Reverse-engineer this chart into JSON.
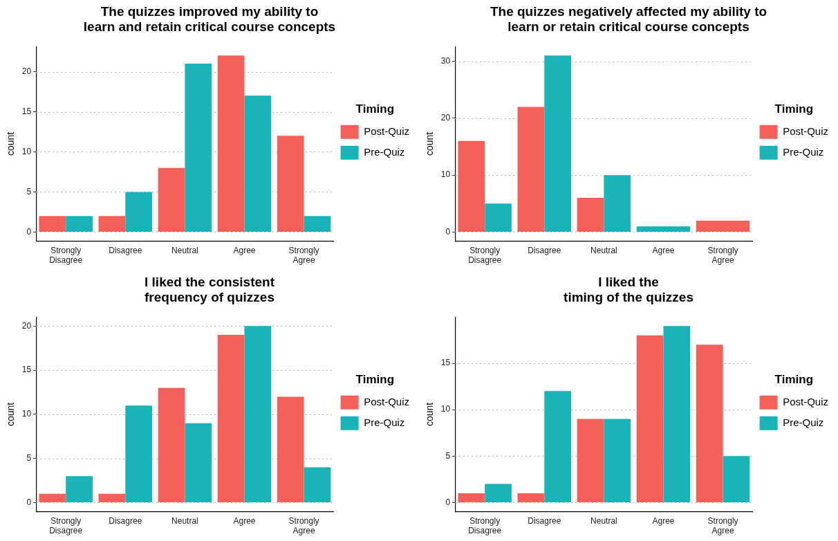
{
  "chart_data": [
    {
      "type": "bar",
      "title": "The quizzes improved my ability to\nlearn and retain critical course concepts",
      "ylabel": "count",
      "legend_title": "Timing",
      "categories": [
        "Strongly Disagree",
        "Disagree",
        "Neutral",
        "Agree",
        "Strongly Agree"
      ],
      "series": [
        {
          "name": "Post-Quiz",
          "color": "#f5605b",
          "values": [
            2,
            2,
            8,
            22,
            12
          ]
        },
        {
          "name": "Pre-Quiz",
          "color": "#1ab3b8",
          "values": [
            2,
            5,
            21,
            17,
            2
          ]
        }
      ],
      "ylim": [
        -1.1,
        23.1
      ],
      "yticks": [
        0,
        5,
        10,
        15,
        20
      ],
      "grid": "y",
      "legend": "right"
    },
    {
      "type": "bar",
      "title": "The quizzes negatively affected my ability to\nlearn or retain critical course concepts",
      "ylabel": "count",
      "legend_title": "Timing",
      "categories": [
        "Strongly Disagree",
        "Disagree",
        "Neutral",
        "Agree",
        "Strongly Agree"
      ],
      "series": [
        {
          "name": "Post-Quiz",
          "color": "#f5605b",
          "values": [
            16,
            22,
            6,
            null,
            2
          ]
        },
        {
          "name": "Pre-Quiz",
          "color": "#1ab3b8",
          "values": [
            5,
            31,
            10,
            1,
            null
          ]
        }
      ],
      "ylim": [
        -1.55,
        32.55
      ],
      "yticks": [
        0,
        10,
        20,
        30
      ],
      "grid": "y",
      "legend": "right"
    },
    {
      "type": "bar",
      "title": "I liked the consistent\nfrequency of quizzes",
      "ylabel": "count",
      "legend_title": "Timing",
      "categories": [
        "Strongly Disagree",
        "Disagree",
        "Neutral",
        "Agree",
        "Strongly Agree"
      ],
      "series": [
        {
          "name": "Post-Quiz",
          "color": "#f5605b",
          "values": [
            1,
            1,
            13,
            19,
            12
          ]
        },
        {
          "name": "Pre-Quiz",
          "color": "#1ab3b8",
          "values": [
            3,
            11,
            9,
            20,
            4
          ]
        }
      ],
      "ylim": [
        -1,
        21
      ],
      "yticks": [
        0,
        5,
        10,
        15,
        20
      ],
      "grid": "y",
      "legend": "right"
    },
    {
      "type": "bar",
      "title": "I liked the\ntiming of the quizzes",
      "ylabel": "count",
      "legend_title": "Timing",
      "categories": [
        "Strongly Disagree",
        "Disagree",
        "Neutral",
        "Agree",
        "Strongly Agree"
      ],
      "series": [
        {
          "name": "Post-Quiz",
          "color": "#f5605b",
          "values": [
            1,
            1,
            9,
            18,
            17
          ]
        },
        {
          "name": "Pre-Quiz",
          "color": "#1ab3b8",
          "values": [
            2,
            12,
            9,
            19,
            5
          ]
        }
      ],
      "ylim": [
        -0.95,
        19.95
      ],
      "yticks": [
        0,
        5,
        10,
        15
      ],
      "grid": "y",
      "legend": "right"
    }
  ]
}
